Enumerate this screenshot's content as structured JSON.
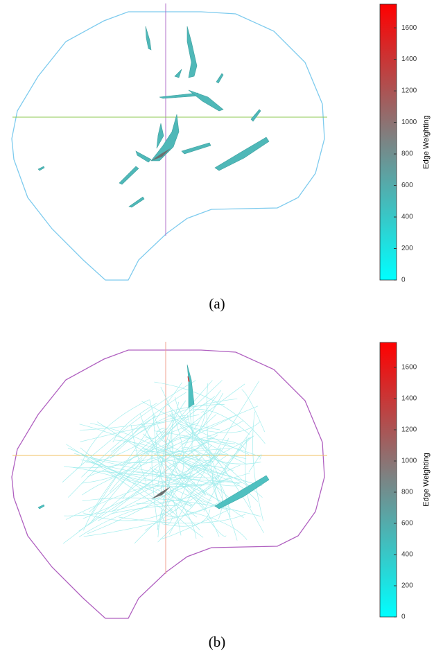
{
  "panels": [
    {
      "caption": "(a)",
      "colorbar": {
        "label": "Edge Weighting",
        "range": [
          0,
          1750
        ],
        "ticks": [
          0,
          200,
          400,
          600,
          800,
          1000,
          1200,
          1400,
          1600
        ],
        "colors": [
          "#00ffff",
          "#7a8585",
          "#ff0000"
        ]
      }
    },
    {
      "caption": "(b)",
      "colorbar": {
        "label": "Edge Weighting",
        "range": [
          0,
          1760
        ],
        "ticks": [
          0,
          200,
          400,
          600,
          800,
          1000,
          1200,
          1400,
          1600
        ],
        "colors": [
          "#00ffff",
          "#7a8585",
          "#ff0000"
        ]
      }
    }
  ]
}
